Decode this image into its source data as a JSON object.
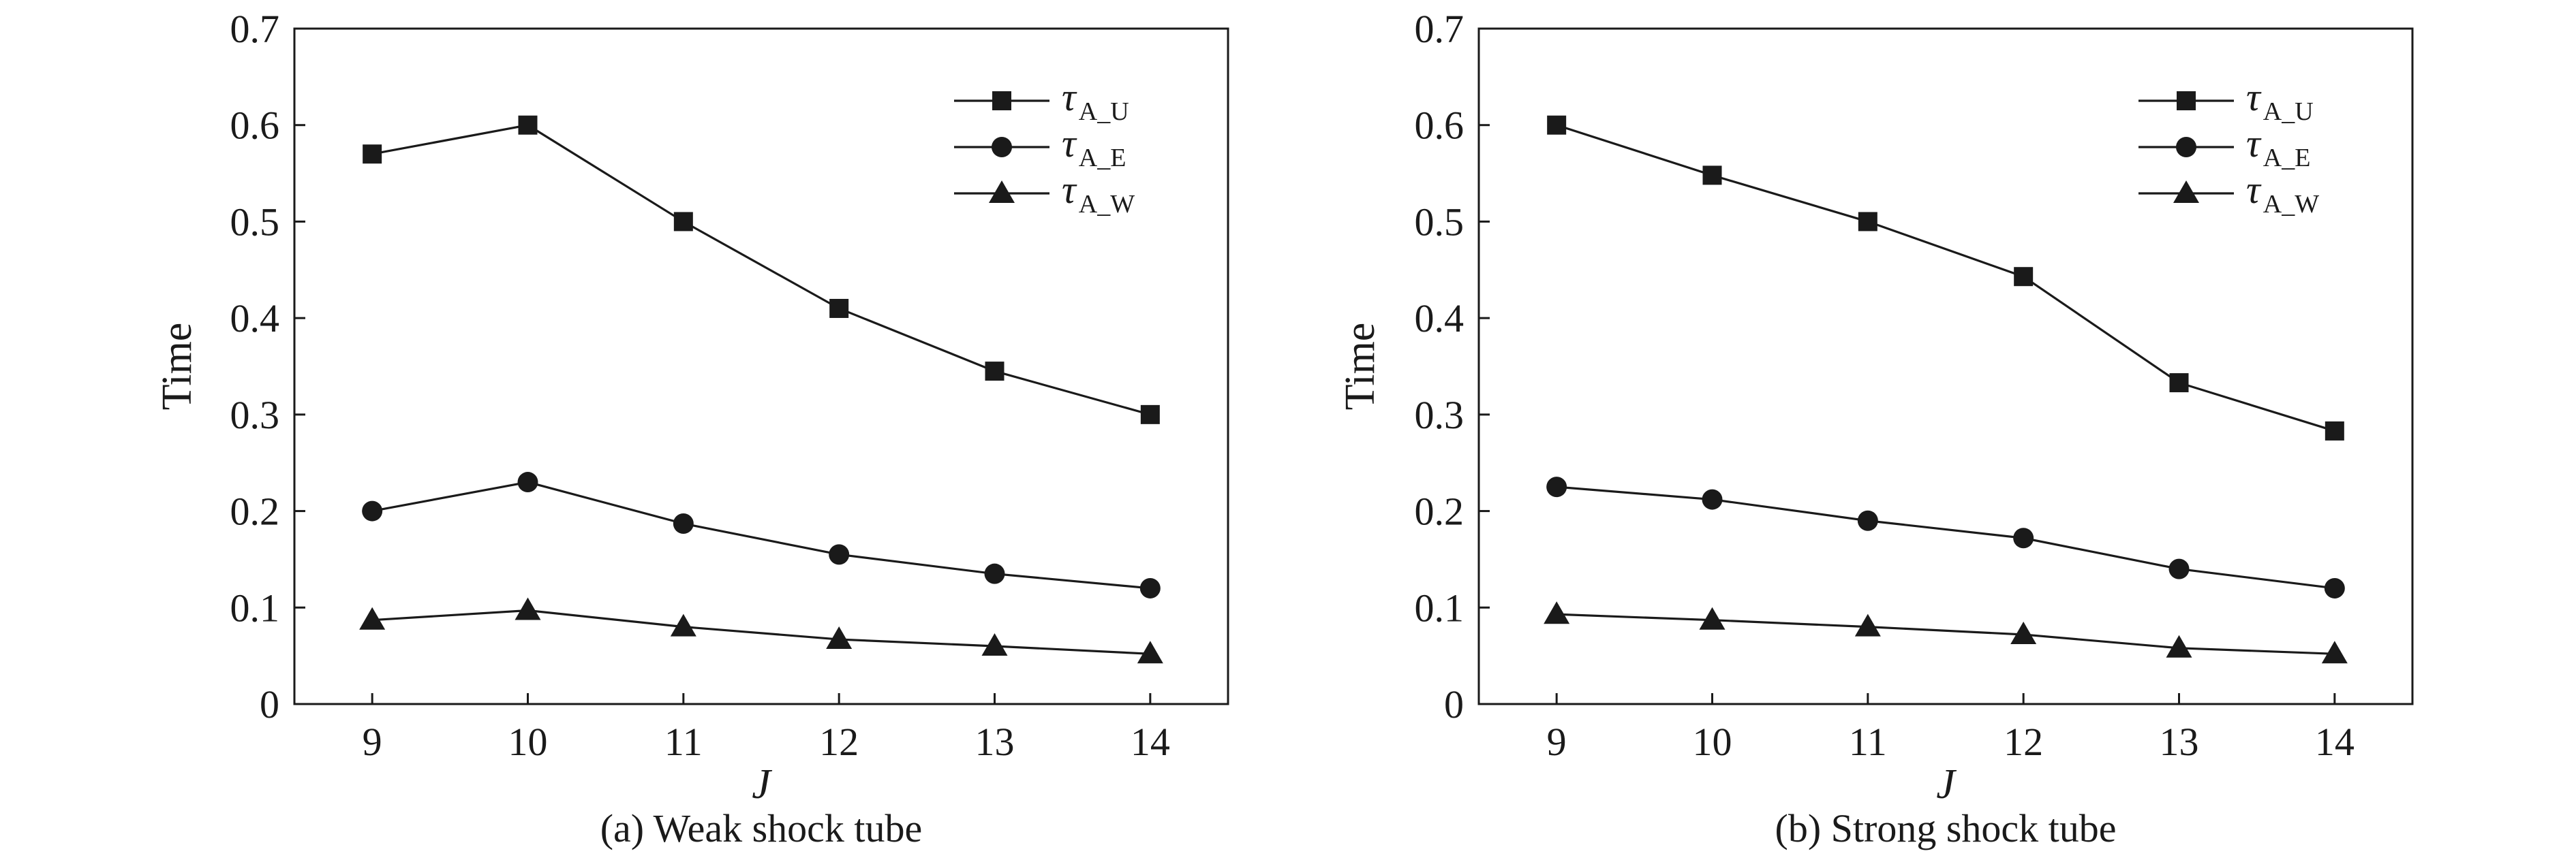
{
  "chart_data": [
    {
      "type": "line",
      "caption": "(a) Weak shock tube",
      "xlabel": "J",
      "ylabel": "Time",
      "x": [
        9,
        10,
        11,
        12,
        13,
        14
      ],
      "xlim": [
        8.5,
        14.5
      ],
      "ylim": [
        0,
        0.7
      ],
      "yticks": [
        "0",
        "0.1",
        "0.2",
        "0.3",
        "0.4",
        "0.5",
        "0.6",
        "0.7"
      ],
      "xticks": [
        "9",
        "10",
        "11",
        "12",
        "13",
        "14"
      ],
      "legend_position": "top-right",
      "grid": false,
      "series": [
        {
          "name": "τA_U",
          "symbol": "τ",
          "subscript": "A_U",
          "marker": "square",
          "values": [
            0.57,
            0.6,
            0.5,
            0.41,
            0.345,
            0.3
          ]
        },
        {
          "name": "τA_E",
          "symbol": "τ",
          "subscript": "A_E",
          "marker": "circle",
          "values": [
            0.2,
            0.23,
            0.187,
            0.155,
            0.135,
            0.12
          ]
        },
        {
          "name": "τA_W",
          "symbol": "τ",
          "subscript": "A_W",
          "marker": "triangle",
          "values": [
            0.087,
            0.097,
            0.08,
            0.067,
            0.06,
            0.052
          ]
        }
      ]
    },
    {
      "type": "line",
      "caption": "(b)  Strong shock tube",
      "xlabel": "J",
      "ylabel": "Time",
      "x": [
        9,
        10,
        11,
        12,
        13,
        14
      ],
      "xlim": [
        8.5,
        14.5
      ],
      "ylim": [
        0,
        0.7
      ],
      "yticks": [
        "0",
        "0.1",
        "0.2",
        "0.3",
        "0.4",
        "0.5",
        "0.6",
        "0.7"
      ],
      "xticks": [
        "9",
        "10",
        "11",
        "12",
        "13",
        "14"
      ],
      "legend_position": "top-right",
      "grid": false,
      "series": [
        {
          "name": "τA_U",
          "symbol": "τ",
          "subscript": "A_U",
          "marker": "square",
          "values": [
            0.6,
            0.548,
            0.5,
            0.443,
            0.333,
            0.283
          ]
        },
        {
          "name": "τA_E",
          "symbol": "τ",
          "subscript": "A_E",
          "marker": "circle",
          "values": [
            0.225,
            0.212,
            0.19,
            0.172,
            0.14,
            0.12
          ]
        },
        {
          "name": "τA_W",
          "symbol": "τ",
          "subscript": "A_W",
          "marker": "triangle",
          "values": [
            0.093,
            0.087,
            0.08,
            0.072,
            0.058,
            0.052
          ]
        }
      ]
    }
  ],
  "colors": {
    "line": "#1a1a1a",
    "marker": "#1a1a1a",
    "background": "#ffffff"
  }
}
